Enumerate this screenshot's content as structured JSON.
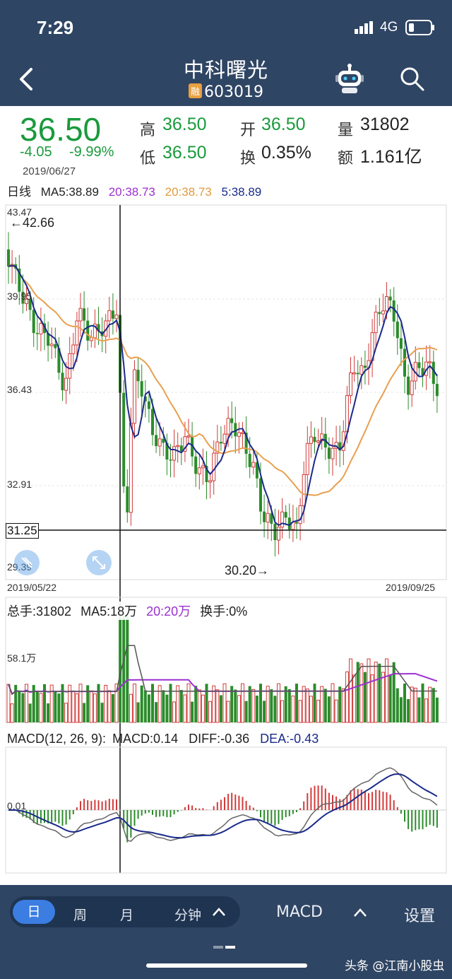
{
  "status_bar": {
    "time": "7:29",
    "network": "4G"
  },
  "header": {
    "title": "中科曙光",
    "badge": "融",
    "code": "603019"
  },
  "quote": {
    "price": "36.50",
    "change": "-4.05",
    "change_pct": "-9.99%",
    "date": "2019/06/27",
    "high_label": "高",
    "high": "36.50",
    "low_label": "低",
    "low": "36.50",
    "open_label": "开",
    "open": "36.50",
    "turnover_label": "换",
    "turnover": "0.35%",
    "volume_label": "量",
    "volume": "31802",
    "amount_label": "额",
    "amount": "1.161亿"
  },
  "ma_legend": {
    "period": "日线",
    "ma5": "MA5:38.89",
    "ma20a": "20:38.73",
    "ma20b": "20:38.73",
    "ma5b": "5:38.89"
  },
  "price_axis": {
    "top": "43.47",
    "y2": "39.95",
    "y3": "36.43",
    "y4": "32.91",
    "bottom": "29.39",
    "cursor": "31.25"
  },
  "price_annotations": {
    "max": "←42.66",
    "min": "30.20→"
  },
  "date_axis": {
    "start": "2019/05/22",
    "end": "2019/09/25"
  },
  "volume_header": {
    "total": "总手:31802",
    "ma5": "MA5:18万",
    "ma20": "20:20万",
    "turnover": "换手:0%"
  },
  "volume_axis": {
    "label": "58.1万"
  },
  "macd_header": {
    "params": "MACD(12, 26, 9):",
    "macd": "MACD:0.14",
    "diff": "DIFF:-0.36",
    "dea": "DEA:-0.43"
  },
  "macd_axis": {
    "label": "0.01"
  },
  "bottom_bar": {
    "tabs": [
      "日",
      "周",
      "月",
      "分钟"
    ],
    "indicator": "MACD",
    "settings": "设置",
    "watermark": "头条 @江南小股虫"
  },
  "colors": {
    "up": "#d23b3b",
    "down": "#2b8c2b",
    "ma5": "#1a2a8a",
    "ma20": "#e8a050",
    "ma_purple": "#9b30d0",
    "header_bg": "#2f4564",
    "price_green": "#1a9a3c"
  },
  "chart_data": {
    "type": "candlestick",
    "y_range": [
      29.39,
      43.47
    ],
    "x_range": [
      "2019/05/22",
      "2019/09/25"
    ],
    "price_high": 42.66,
    "price_low": 30.2,
    "cursor_date": "2019/06/27",
    "cursor_close": 36.5
  }
}
